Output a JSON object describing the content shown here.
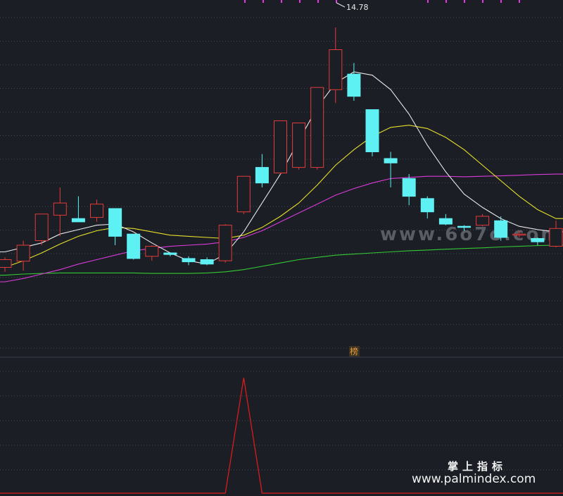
{
  "chart_data": {
    "type": "candlestick",
    "peak_label": "14.78",
    "indicator_tag": "榜",
    "watermarks": {
      "main": "www.6o7o.com",
      "footer_cn": "掌上指标",
      "footer_url": "www.palmindex.com"
    },
    "colors": {
      "background": "#1b1e25",
      "up": "#e23b3b",
      "down": "#5ef1f4",
      "ma_white": "#e8e8e8",
      "ma_yellow": "#e7df2a",
      "ma_magenta": "#d93bd9",
      "ma_green": "#34c934",
      "indicator": "#d91c1c",
      "grid": "#444b5a"
    },
    "candles": [
      {
        "o": 10.6,
        "c": 10.95,
        "h": 11.05,
        "l": 10.4
      },
      {
        "o": 10.88,
        "c": 11.6,
        "h": 11.8,
        "l": 10.45
      },
      {
        "o": 11.8,
        "c": 13.0,
        "h": 13.0,
        "l": 11.6
      },
      {
        "o": 12.95,
        "c": 13.5,
        "h": 14.2,
        "l": 12.0
      },
      {
        "o": 12.8,
        "c": 12.65,
        "h": 13.8,
        "l": 12.7
      },
      {
        "o": 12.85,
        "c": 13.45,
        "h": 13.65,
        "l": 12.65
      },
      {
        "o": 13.25,
        "c": 12.0,
        "h": 13.2,
        "l": 11.6
      },
      {
        "o": 12.1,
        "c": 11.0,
        "h": 12.1,
        "l": 10.95
      },
      {
        "o": 11.1,
        "c": 11.55,
        "h": 11.6,
        "l": 10.9
      },
      {
        "o": 11.25,
        "c": 11.18,
        "h": 11.28,
        "l": 11.1
      },
      {
        "o": 11.0,
        "c": 10.85,
        "h": 11.1,
        "l": 10.7
      },
      {
        "o": 10.95,
        "c": 10.75,
        "h": 11.05,
        "l": 10.7
      },
      {
        "o": 10.9,
        "c": 12.5,
        "h": 12.55,
        "l": 10.82
      },
      {
        "o": 13.1,
        "c": 14.7,
        "h": 14.7,
        "l": 13.0
      },
      {
        "o": 15.1,
        "c": 14.4,
        "h": 15.7,
        "l": 14.2
      },
      {
        "o": 14.85,
        "c": 17.2,
        "h": 17.2,
        "l": 14.8
      },
      {
        "o": 15.1,
        "c": 17.1,
        "h": 17.1,
        "l": 15.0
      },
      {
        "o": 15.1,
        "c": 18.7,
        "h": 18.7,
        "l": 15.0
      },
      {
        "o": 18.6,
        "c": 20.4,
        "h": 21.4,
        "l": 18.0
      },
      {
        "o": 19.3,
        "c": 18.3,
        "h": 19.8,
        "l": 18.1
      },
      {
        "o": 17.7,
        "c": 15.8,
        "h": 17.7,
        "l": 15.6
      },
      {
        "o": 15.5,
        "c": 15.3,
        "h": 15.8,
        "l": 14.2
      },
      {
        "o": 14.6,
        "c": 13.8,
        "h": 14.8,
        "l": 13.4
      },
      {
        "o": 13.7,
        "c": 13.1,
        "h": 13.8,
        "l": 12.8
      },
      {
        "o": 12.8,
        "c": 12.55,
        "h": 13.0,
        "l": 12.5
      },
      {
        "o": 12.45,
        "c": 12.4,
        "h": 12.5,
        "l": 12.25
      },
      {
        "o": 12.5,
        "c": 12.9,
        "h": 13.0,
        "l": 12.45
      },
      {
        "o": 12.7,
        "c": 11.95,
        "h": 12.9,
        "l": 11.8
      },
      {
        "o": 12.1,
        "c": 12.1,
        "h": 12.25,
        "l": 11.95
      },
      {
        "o": 11.9,
        "c": 11.75,
        "h": 11.95,
        "l": 11.6
      },
      {
        "o": 11.55,
        "c": 12.35,
        "h": 12.7,
        "l": 11.5
      }
    ],
    "ma_white": [
      11.3,
      11.5,
      11.7,
      12.1,
      12.3,
      12.5,
      12.55,
      12.2,
      11.7,
      11.25,
      10.9,
      10.75,
      11.2,
      12.2,
      13.5,
      14.8,
      16.3,
      17.8,
      18.9,
      19.4,
      19.25,
      18.6,
      17.5,
      16.1,
      14.9,
      13.9,
      13.3,
      12.8,
      12.45,
      12.3,
      12.2
    ],
    "ma_yellow": [
      10.6,
      10.9,
      11.25,
      11.65,
      12.0,
      12.25,
      12.4,
      12.35,
      12.2,
      12.05,
      12.0,
      11.95,
      11.9,
      12.05,
      12.4,
      12.9,
      13.5,
      14.3,
      15.2,
      15.9,
      16.5,
      16.9,
      17.0,
      16.85,
      16.45,
      15.9,
      15.2,
      14.5,
      13.8,
      13.2,
      12.8
    ],
    "ma_magenta": [
      9.95,
      10.1,
      10.3,
      10.5,
      10.75,
      10.95,
      11.15,
      11.35,
      11.45,
      11.55,
      11.6,
      11.65,
      11.75,
      11.95,
      12.25,
      12.65,
      13.05,
      13.45,
      13.85,
      14.15,
      14.4,
      14.6,
      14.65,
      14.7,
      14.7,
      14.68,
      14.7,
      14.72,
      14.75,
      14.78,
      14.8
    ],
    "ma_green": [
      10.25,
      10.3,
      10.33,
      10.35,
      10.35,
      10.35,
      10.35,
      10.35,
      10.33,
      10.33,
      10.33,
      10.35,
      10.4,
      10.5,
      10.65,
      10.8,
      10.95,
      11.05,
      11.15,
      11.2,
      11.25,
      11.3,
      11.35,
      11.38,
      11.42,
      11.45,
      11.48,
      11.52,
      11.55,
      11.58,
      11.6
    ],
    "indicator": [
      0,
      0,
      0,
      0,
      0,
      0,
      0,
      0,
      0,
      0,
      0,
      0,
      0,
      1,
      0,
      0,
      0,
      0,
      0,
      0,
      0,
      0,
      0,
      0,
      0,
      0,
      0,
      0,
      0,
      0,
      0
    ],
    "indicator_ylim": [
      0,
      1.05
    ]
  }
}
